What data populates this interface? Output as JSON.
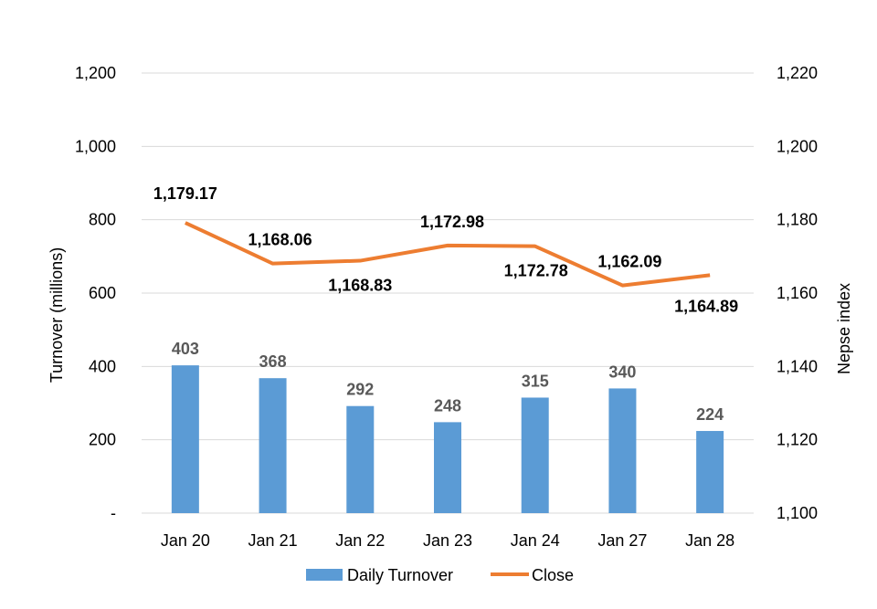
{
  "chart_data": {
    "type": "bar+line",
    "categories": [
      "Jan 20",
      "Jan 21",
      "Jan 22",
      "Jan 23",
      "Jan 24",
      "Jan 27",
      "Jan 28"
    ],
    "series": [
      {
        "name": "Daily Turnover",
        "type": "bar",
        "axis": "left",
        "color": "#5B9BD5",
        "values": [
          403,
          368,
          292,
          248,
          315,
          340,
          224
        ],
        "labels": [
          "403",
          "368",
          "292",
          "248",
          "315",
          "340",
          "224"
        ]
      },
      {
        "name": "Close",
        "type": "line",
        "axis": "right",
        "color": "#ED7D31",
        "values": [
          1179.17,
          1168.06,
          1168.83,
          1172.98,
          1172.78,
          1162.09,
          1164.89
        ],
        "labels": [
          "1,179.17",
          "1,168.06",
          "1,168.83",
          "1,172.98",
          "1,172.78",
          "1,162.09",
          "1,164.89"
        ]
      }
    ],
    "ylabel": "Turnover (millions)",
    "y2label": "Nepse index",
    "ylim": [
      0,
      1200
    ],
    "y2lim": [
      1100,
      1220
    ],
    "yticks": [
      "-",
      "200",
      "400",
      "600",
      "800",
      "1,000",
      "1,200"
    ],
    "y2ticks": [
      "1,100",
      "1,120",
      "1,140",
      "1,160",
      "1,180",
      "1,200",
      "1,220"
    ],
    "grid": true,
    "legend_position": "bottom",
    "legend": [
      "Daily Turnover",
      "Close"
    ]
  }
}
